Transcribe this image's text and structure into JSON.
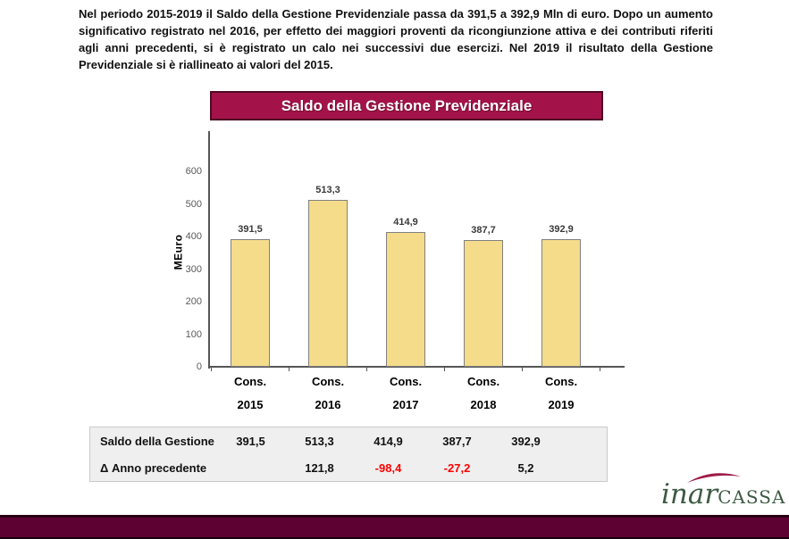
{
  "intro": {
    "text": "Nel periodo 2015-2019 il Saldo della Gestione Previdenziale passa da 391,5 a 392,9 Mln di euro. Dopo un aumento significativo registrato nel 2016, per effetto dei maggiori proventi da ricongiunzione attiva e dei contributi riferiti agli anni precedenti, si è registrato un calo nei successivi due esercizi. Nel 2019 il risultato della Gestione Previdenziale si è riallineato ai valori del 2015."
  },
  "banner": {
    "title": "Saldo della Gestione Previdenziale"
  },
  "chart_data": {
    "type": "bar",
    "title": "Saldo della Gestione Previdenziale",
    "ylabel": "MEuro",
    "xlabel": "",
    "categories": [
      {
        "line1": "Cons.",
        "line2": "2015"
      },
      {
        "line1": "Cons.",
        "line2": "2016"
      },
      {
        "line1": "Cons.",
        "line2": "2017"
      },
      {
        "line1": "Cons.",
        "line2": "2018"
      },
      {
        "line1": "Cons.",
        "line2": "2019"
      }
    ],
    "values": [
      391.5,
      513.3,
      414.9,
      387.7,
      392.9
    ],
    "value_labels": [
      "391,5",
      "513,3",
      "414,9",
      "387,7",
      "392,9"
    ],
    "yticks": [
      0,
      100,
      200,
      300,
      400,
      500,
      600
    ],
    "ylim": [
      0,
      700
    ],
    "grid": false,
    "legend": false
  },
  "table": {
    "rows": [
      {
        "label": "Saldo della Gestione",
        "cells": [
          "391,5",
          "513,3",
          "414,9",
          "387,7",
          "392,9"
        ]
      },
      {
        "label": "Δ Anno precedente",
        "cells": [
          "",
          "121,8",
          "-98,4",
          "-27,2",
          "5,2"
        ]
      }
    ]
  },
  "logo": {
    "part1": "inar",
    "part2": "CASSA"
  },
  "colors": {
    "banner_bg": "#a31349",
    "banner_border": "#4d0a24",
    "bar_fill": "#f5dc8b",
    "bar_border": "#808080",
    "axis": "#555555",
    "tick_label": "#5a5a5a",
    "negative_value": "#ff0000",
    "table_bg": "#efefef",
    "footer_bar": "#5d0132",
    "logo_green": "#3d5a44",
    "logo_swoosh": "#9e1b49"
  }
}
